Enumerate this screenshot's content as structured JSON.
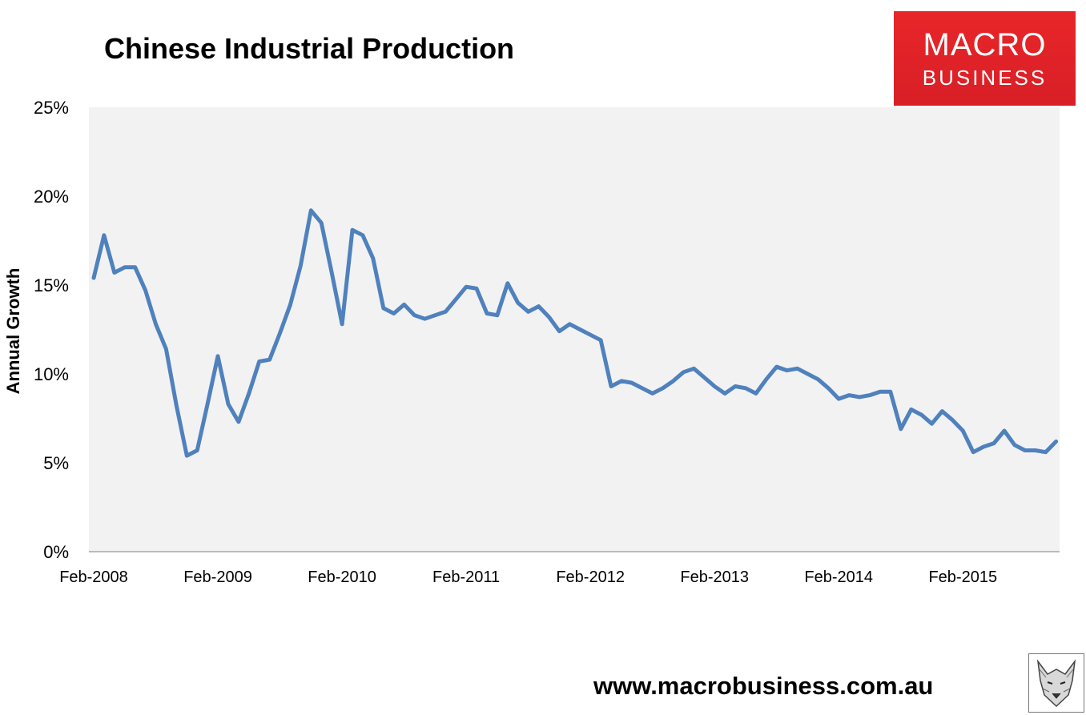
{
  "logo": {
    "line1": "MACRO",
    "line2": "BUSINESS",
    "color": "#e3262b"
  },
  "footer": {
    "url": "www.macrobusiness.com.au",
    "mascot_icon": "fox-sketch-icon"
  },
  "chart_data": {
    "type": "line",
    "title": "Chinese Industrial Production",
    "xlabel": "",
    "ylabel": "Annual Growth",
    "ylim": [
      0,
      25
    ],
    "y_ticks": [
      0,
      5,
      10,
      15,
      20,
      25
    ],
    "y_tick_labels": [
      "0%",
      "5%",
      "10%",
      "15%",
      "20%",
      "25%"
    ],
    "x_tick_labels": [
      "Feb-2008",
      "Feb-2009",
      "Feb-2010",
      "Feb-2011",
      "Feb-2012",
      "Feb-2013",
      "Feb-2014",
      "Feb-2015"
    ],
    "grid": false,
    "plot_background": "#f2f2f2",
    "line_color": "#4f81bd",
    "series": [
      {
        "x": [
          "Feb-2008",
          "Mar-2008",
          "Apr-2008",
          "May-2008",
          "Jun-2008",
          "Jul-2008",
          "Aug-2008",
          "Sep-2008",
          "Oct-2008",
          "Nov-2008",
          "Dec-2008",
          "Jan-2009",
          "Feb-2009",
          "Mar-2009",
          "Apr-2009",
          "May-2009",
          "Jun-2009",
          "Jul-2009",
          "Aug-2009",
          "Sep-2009",
          "Oct-2009",
          "Nov-2009",
          "Dec-2009",
          "Jan-2010",
          "Feb-2010",
          "Mar-2010",
          "Apr-2010",
          "May-2010",
          "Jun-2010",
          "Jul-2010",
          "Aug-2010",
          "Sep-2010",
          "Oct-2010",
          "Nov-2010",
          "Dec-2010",
          "Jan-2011",
          "Feb-2011",
          "Mar-2011",
          "Apr-2011",
          "May-2011",
          "Jun-2011",
          "Jul-2011",
          "Aug-2011",
          "Sep-2011",
          "Oct-2011",
          "Nov-2011",
          "Dec-2011",
          "Jan-2012",
          "Feb-2012",
          "Mar-2012",
          "Apr-2012",
          "May-2012",
          "Jun-2012",
          "Jul-2012",
          "Aug-2012",
          "Sep-2012",
          "Oct-2012",
          "Nov-2012",
          "Dec-2012",
          "Jan-2013",
          "Feb-2013",
          "Mar-2013",
          "Apr-2013",
          "May-2013",
          "Jun-2013",
          "Jul-2013",
          "Aug-2013",
          "Sep-2013",
          "Oct-2013",
          "Nov-2013",
          "Dec-2013",
          "Jan-2014",
          "Feb-2014",
          "Mar-2014",
          "Apr-2014",
          "May-2014",
          "Jun-2014",
          "Jul-2014",
          "Aug-2014",
          "Sep-2014",
          "Oct-2014",
          "Nov-2014",
          "Dec-2014",
          "Jan-2015",
          "Feb-2015",
          "Mar-2015",
          "Apr-2015",
          "May-2015",
          "Jun-2015",
          "Jul-2015",
          "Aug-2015",
          "Sep-2015",
          "Oct-2015",
          "Nov-2015"
        ],
        "values": [
          15.4,
          17.8,
          15.7,
          16.0,
          16.0,
          14.7,
          12.8,
          11.4,
          8.2,
          5.4,
          5.7,
          8.3,
          11.0,
          8.3,
          7.3,
          8.9,
          10.7,
          10.8,
          12.3,
          13.9,
          16.1,
          19.2,
          18.5,
          15.7,
          12.8,
          18.1,
          17.8,
          16.5,
          13.7,
          13.4,
          13.9,
          13.3,
          13.1,
          13.3,
          13.5,
          14.2,
          14.9,
          14.8,
          13.4,
          13.3,
          15.1,
          14.0,
          13.5,
          13.8,
          13.2,
          12.4,
          12.8,
          12.5,
          12.2,
          11.9,
          9.3,
          9.6,
          9.5,
          9.2,
          8.9,
          9.2,
          9.6,
          10.1,
          10.3,
          9.8,
          9.3,
          8.9,
          9.3,
          9.2,
          8.9,
          9.7,
          10.4,
          10.2,
          10.3,
          10.0,
          9.7,
          9.2,
          8.6,
          8.8,
          8.7,
          8.8,
          9.0,
          9.0,
          6.9,
          8.0,
          7.7,
          7.2,
          7.9,
          7.4,
          6.8,
          5.6,
          5.9,
          6.1,
          6.8,
          6.0,
          5.7,
          5.7,
          5.6,
          6.2
        ]
      }
    ]
  }
}
